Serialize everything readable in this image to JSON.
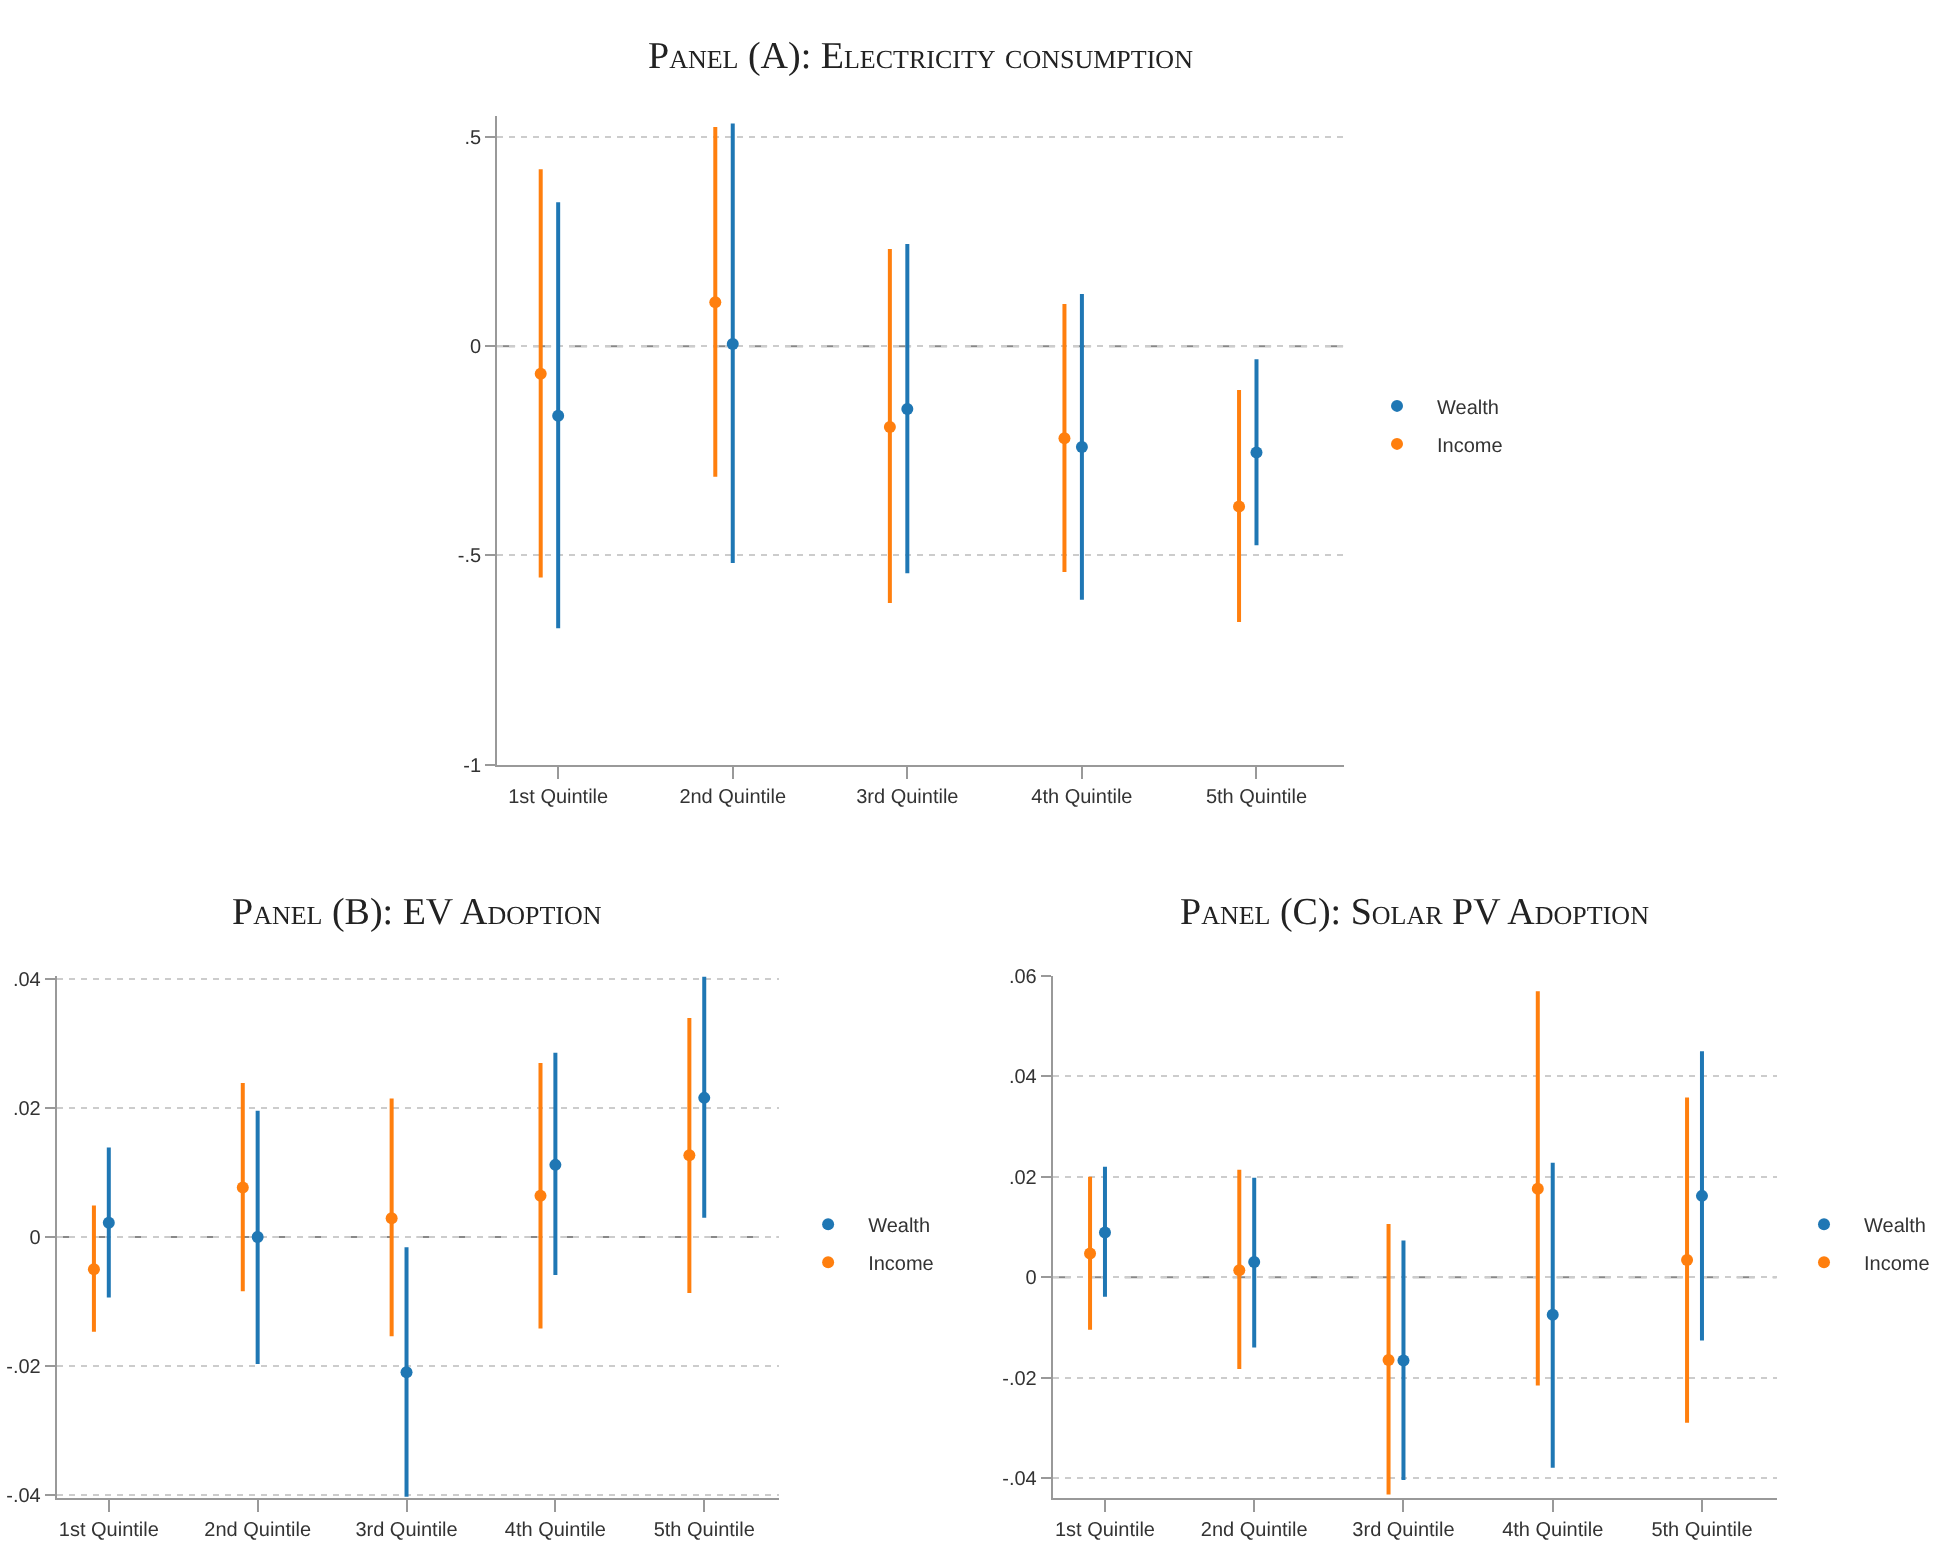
{
  "chart_data": [
    {
      "type": "scatter",
      "title": "Panel (A): Electricity consumption",
      "categories": [
        "1st Quintile",
        "2nd Quintile",
        "3rd Quintile",
        "4th Quintile",
        "5th Quintile"
      ],
      "series": [
        {
          "name": "Wealth",
          "color": "#1f77b4",
          "values": [
            -0.166,
            0.005,
            -0.15,
            -0.241,
            -0.254
          ],
          "errors": [
            [
              -0.674,
              0.344
            ],
            [
              -0.518,
              0.532
            ],
            [
              -0.543,
              0.244
            ],
            [
              -0.606,
              0.125
            ],
            [
              -0.476,
              -0.031
            ]
          ]
        },
        {
          "name": "Income",
          "color": "#ff7f0e",
          "values": [
            -0.066,
            0.105,
            -0.193,
            -0.22,
            -0.383
          ],
          "errors": [
            [
              -0.553,
              0.423
            ],
            [
              -0.312,
              0.524
            ],
            [
              -0.614,
              0.232
            ],
            [
              -0.54,
              0.101
            ],
            [
              -0.659,
              -0.105
            ]
          ]
        }
      ],
      "ylim": [
        -1,
        0.55
      ],
      "yticks": [
        {
          "value": 0.5,
          "label": ".5"
        },
        0,
        {
          "value": -0.5,
          "label": "-.5"
        },
        -1
      ],
      "grid": "y",
      "legend": "right",
      "marker": "circle",
      "ref_lines": [
        {
          "axis": "y",
          "value": 0,
          "label": null,
          "color": "#888888",
          "line_style": "dashed"
        }
      ]
    },
    {
      "type": "scatter",
      "title": "Panel (B): EV Adoption",
      "categories": [
        "1st Quintile",
        "2nd Quintile",
        "3rd Quintile",
        "4th Quintile",
        "5th Quintile"
      ],
      "series": [
        {
          "name": "Wealth",
          "color": "#1f77b4",
          "values": [
            0.0022,
            0.0,
            -0.021,
            0.0112,
            0.0216
          ],
          "errors": [
            [
              -0.0094,
              0.0139
            ],
            [
              -0.0197,
              0.0196
            ],
            [
              -0.0403,
              -0.0016
            ],
            [
              -0.0059,
              0.0286
            ],
            [
              0.003,
              0.0404
            ]
          ]
        },
        {
          "name": "Income",
          "color": "#ff7f0e",
          "values": [
            -0.005,
            0.0077,
            0.0029,
            0.0064,
            0.0127
          ],
          "errors": [
            [
              -0.0147,
              0.0049
            ],
            [
              -0.0084,
              0.0239
            ],
            [
              -0.0154,
              0.0215
            ],
            [
              -0.0142,
              0.027
            ],
            [
              -0.0087,
              0.034
            ]
          ]
        }
      ],
      "ylim": [
        -0.0405,
        0.0405
      ],
      "yticks": [
        {
          "value": 0.04,
          "label": ".04"
        },
        {
          "value": 0.02,
          "label": ".02"
        },
        0,
        {
          "value": -0.02,
          "label": "-.02"
        },
        {
          "value": -0.04,
          "label": "-.04"
        }
      ],
      "grid": "y",
      "legend": "right",
      "marker": "circle",
      "ref_lines": [
        {
          "axis": "y",
          "value": 0,
          "label": null,
          "color": "#888888",
          "line_style": "dashed"
        }
      ]
    },
    {
      "type": "scatter",
      "title": "Panel (C): Solar PV Adoption",
      "categories": [
        "1st Quintile",
        "2nd Quintile",
        "3rd Quintile",
        "4th Quintile",
        "5th Quintile"
      ],
      "series": [
        {
          "name": "Wealth",
          "color": "#1f77b4",
          "values": [
            0.0089,
            0.003,
            -0.0166,
            -0.0075,
            0.0162
          ],
          "errors": [
            [
              -0.0039,
              0.022
            ],
            [
              -0.014,
              0.0198
            ],
            [
              -0.0404,
              0.0073
            ],
            [
              -0.038,
              0.0228
            ],
            [
              -0.0126,
              0.045
            ]
          ]
        },
        {
          "name": "Income",
          "color": "#ff7f0e",
          "values": [
            0.0047,
            0.0014,
            -0.0165,
            0.0176,
            0.0034
          ],
          "errors": [
            [
              -0.0105,
              0.02
            ],
            [
              -0.0183,
              0.0214
            ],
            [
              -0.0433,
              0.0106
            ],
            [
              -0.0216,
              0.057
            ],
            [
              -0.029,
              0.0358
            ]
          ]
        }
      ],
      "ylim": [
        -0.044,
        0.06
      ],
      "yticks": [
        {
          "value": 0.06,
          "label": ".06"
        },
        {
          "value": 0.04,
          "label": ".04"
        },
        {
          "value": 0.02,
          "label": ".02"
        },
        0,
        {
          "value": -0.02,
          "label": "-.02"
        },
        {
          "value": -0.04,
          "label": "-.04"
        }
      ],
      "grid": "y",
      "legend": "right",
      "marker": "circle",
      "ref_lines": [
        {
          "axis": "y",
          "value": 0,
          "label": null,
          "color": "#888888",
          "line_style": "dashed"
        }
      ]
    }
  ]
}
